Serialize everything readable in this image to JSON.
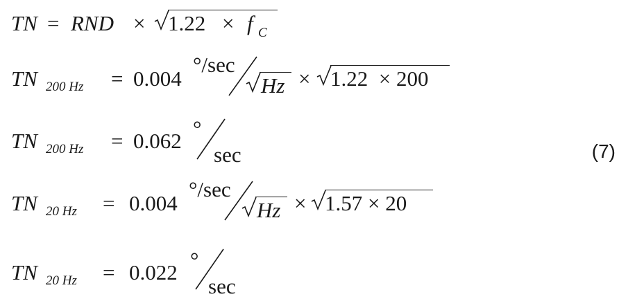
{
  "eq1": {
    "lhs": "TN",
    "eq": "=",
    "rnd": "RND",
    "times": "×",
    "radicand_num": "1.22",
    "radicand_times": "×",
    "fc_base": "f",
    "fc_sub": "C"
  },
  "eq2": {
    "lhs": "TN",
    "lhs_sub": "200 Hz",
    "eq": "=",
    "coef": "0.004",
    "unit_num": "°/sec",
    "unit_den": "Hz",
    "times": "×",
    "radicand": "1.22  × 200"
  },
  "eq3": {
    "lhs": "TN",
    "lhs_sub": "200 Hz",
    "eq": "=",
    "value": "0.062",
    "unit_num": "°",
    "unit_den": "sec"
  },
  "eq4": {
    "lhs": "TN",
    "lhs_sub": "20 Hz",
    "eq": "=",
    "coef": "0.004",
    "unit_num": "°/sec",
    "unit_den": "Hz",
    "times": "×",
    "radicand": "1.57 × 20"
  },
  "eq5": {
    "lhs": "TN",
    "lhs_sub": "20 Hz",
    "eq": "=",
    "value": "0.022",
    "unit_num": "°",
    "unit_den": "sec"
  },
  "equation_number": "(7)"
}
